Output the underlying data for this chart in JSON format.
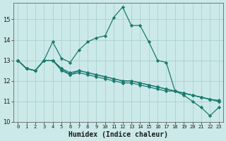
{
  "xlabel": "Humidex (Indice chaleur)",
  "ylabel": "",
  "bg_color": "#cce9e9",
  "grid_color": "#aad0d0",
  "line_color": "#1a7a6e",
  "xlim": [
    -0.5,
    23.5
  ],
  "ylim": [
    10,
    15.8
  ],
  "yticks": [
    10,
    11,
    12,
    13,
    14,
    15
  ],
  "xticks": [
    0,
    1,
    2,
    3,
    4,
    5,
    6,
    7,
    8,
    9,
    10,
    11,
    12,
    13,
    14,
    15,
    16,
    17,
    18,
    19,
    20,
    21,
    22,
    23
  ],
  "series": [
    [
      13.0,
      12.6,
      12.5,
      13.0,
      13.9,
      13.1,
      12.9,
      13.5,
      13.9,
      14.1,
      14.2,
      15.1,
      15.6,
      14.7,
      14.7,
      13.9,
      13.0,
      12.9,
      11.5,
      11.3,
      11.0,
      10.7,
      10.3,
      10.7
    ],
    [
      13.0,
      12.6,
      12.5,
      13.0,
      13.0,
      12.5,
      12.3,
      12.4,
      12.3,
      12.2,
      12.1,
      12.0,
      11.9,
      11.9,
      11.8,
      11.7,
      11.6,
      11.5,
      11.5,
      11.4,
      11.3,
      11.2,
      11.1,
      11.0
    ],
    [
      13.0,
      12.6,
      12.5,
      13.0,
      13.0,
      12.6,
      12.3,
      12.5,
      12.4,
      12.3,
      12.2,
      12.1,
      12.0,
      12.0,
      11.9,
      11.8,
      11.7,
      11.6,
      11.5,
      11.4,
      11.3,
      11.2,
      11.1,
      11.0
    ],
    [
      13.0,
      12.6,
      12.5,
      13.0,
      13.0,
      12.6,
      12.4,
      12.5,
      12.4,
      12.3,
      12.2,
      12.1,
      12.0,
      12.0,
      11.9,
      11.8,
      11.7,
      11.6,
      11.5,
      11.4,
      11.3,
      11.2,
      11.1,
      11.05
    ]
  ],
  "marker": "D",
  "marker_size": 2.2,
  "linewidth": 0.9,
  "xlabel_fontsize": 7,
  "xlabel_fontweight": "bold",
  "tick_fontsize": 5,
  "ytick_fontsize": 6
}
